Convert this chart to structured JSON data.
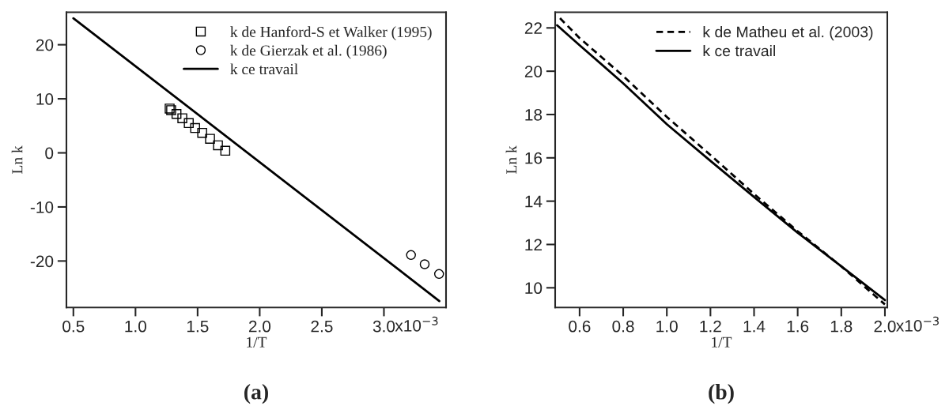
{
  "chart_data": [
    {
      "type": "scatter",
      "title": "(a)",
      "xlabel": "1/T",
      "ylabel": "Ln k",
      "xlim": [
        0.444,
        3.5
      ],
      "ylim": [
        -28.6,
        26.0
      ],
      "xticks": [
        0.5,
        {
          "value": 1.0,
          "label": "1.0"
        },
        1.5,
        {
          "value": 2.0,
          "label": "2.0"
        },
        2.5,
        {
          "value": 3.0,
          "label": "3.0"
        }
      ],
      "yticks": [
        -20,
        -10,
        0,
        10,
        20
      ],
      "legend": "top right",
      "grid": false,
      "annotations": [
        "x10$^{−3}$"
      ],
      "series": [
        {
          "name": "k de Hanford-S et Walker (1995)",
          "marker": "square",
          "color": "#000000",
          "x": [
            1.275,
            1.287,
            1.33,
            1.377,
            1.429,
            1.48,
            1.537,
            1.6,
            1.664,
            1.723
          ],
          "values": [
            8.2,
            7.9,
            7.2,
            6.4,
            5.5,
            4.6,
            3.7,
            2.6,
            1.4,
            0.4
          ]
        },
        {
          "name": "k de Gierzak et al. (1986)",
          "marker": "circle",
          "color": "#000000",
          "x": [
            3.218,
            3.328,
            3.444
          ],
          "values": [
            -18.9,
            -20.6,
            -22.4
          ]
        },
        {
          "name": "k ce travail",
          "type": "line",
          "line_style": "solid",
          "color": "#000000",
          "x": [
            0.5,
            3.446
          ],
          "values": [
            24.9,
            -27.4
          ]
        }
      ]
    },
    {
      "type": "line",
      "title": "(b)",
      "xlabel": "1/T",
      "ylabel": "Ln k",
      "xlim": [
        0.488,
        2.011
      ],
      "ylim": [
        9.09,
        22.72
      ],
      "xticks": [
        0.6,
        0.8,
        {
          "value": 1.0,
          "label": "1.0"
        },
        1.2,
        1.4,
        1.6,
        1.8,
        {
          "value": 2.0,
          "label": "2.0"
        }
      ],
      "yticks": [
        10,
        12,
        14,
        16,
        18,
        20,
        22
      ],
      "legend": "top right",
      "grid": false,
      "annotations": [
        "x10$^{−3}$"
      ],
      "series": [
        {
          "name": "k de Matheu et al. (2003)",
          "line_style": "dashed",
          "color": "#000000",
          "x": [
            0.51,
            0.6,
            0.8,
            1.0,
            1.2,
            1.4,
            1.6,
            1.8,
            2.0
          ],
          "values": [
            22.45,
            21.53,
            19.78,
            17.89,
            16.13,
            14.33,
            12.61,
            10.99,
            9.23
          ]
        },
        {
          "name": "k ce travail",
          "line_style": "solid",
          "color": "#000000",
          "x": [
            0.497,
            0.6,
            0.8,
            1.0,
            1.2,
            1.4,
            1.6,
            1.8,
            2.0
          ],
          "values": [
            22.12,
            21.2,
            19.44,
            17.55,
            15.86,
            14.19,
            12.54,
            10.99,
            9.43
          ]
        }
      ]
    }
  ]
}
